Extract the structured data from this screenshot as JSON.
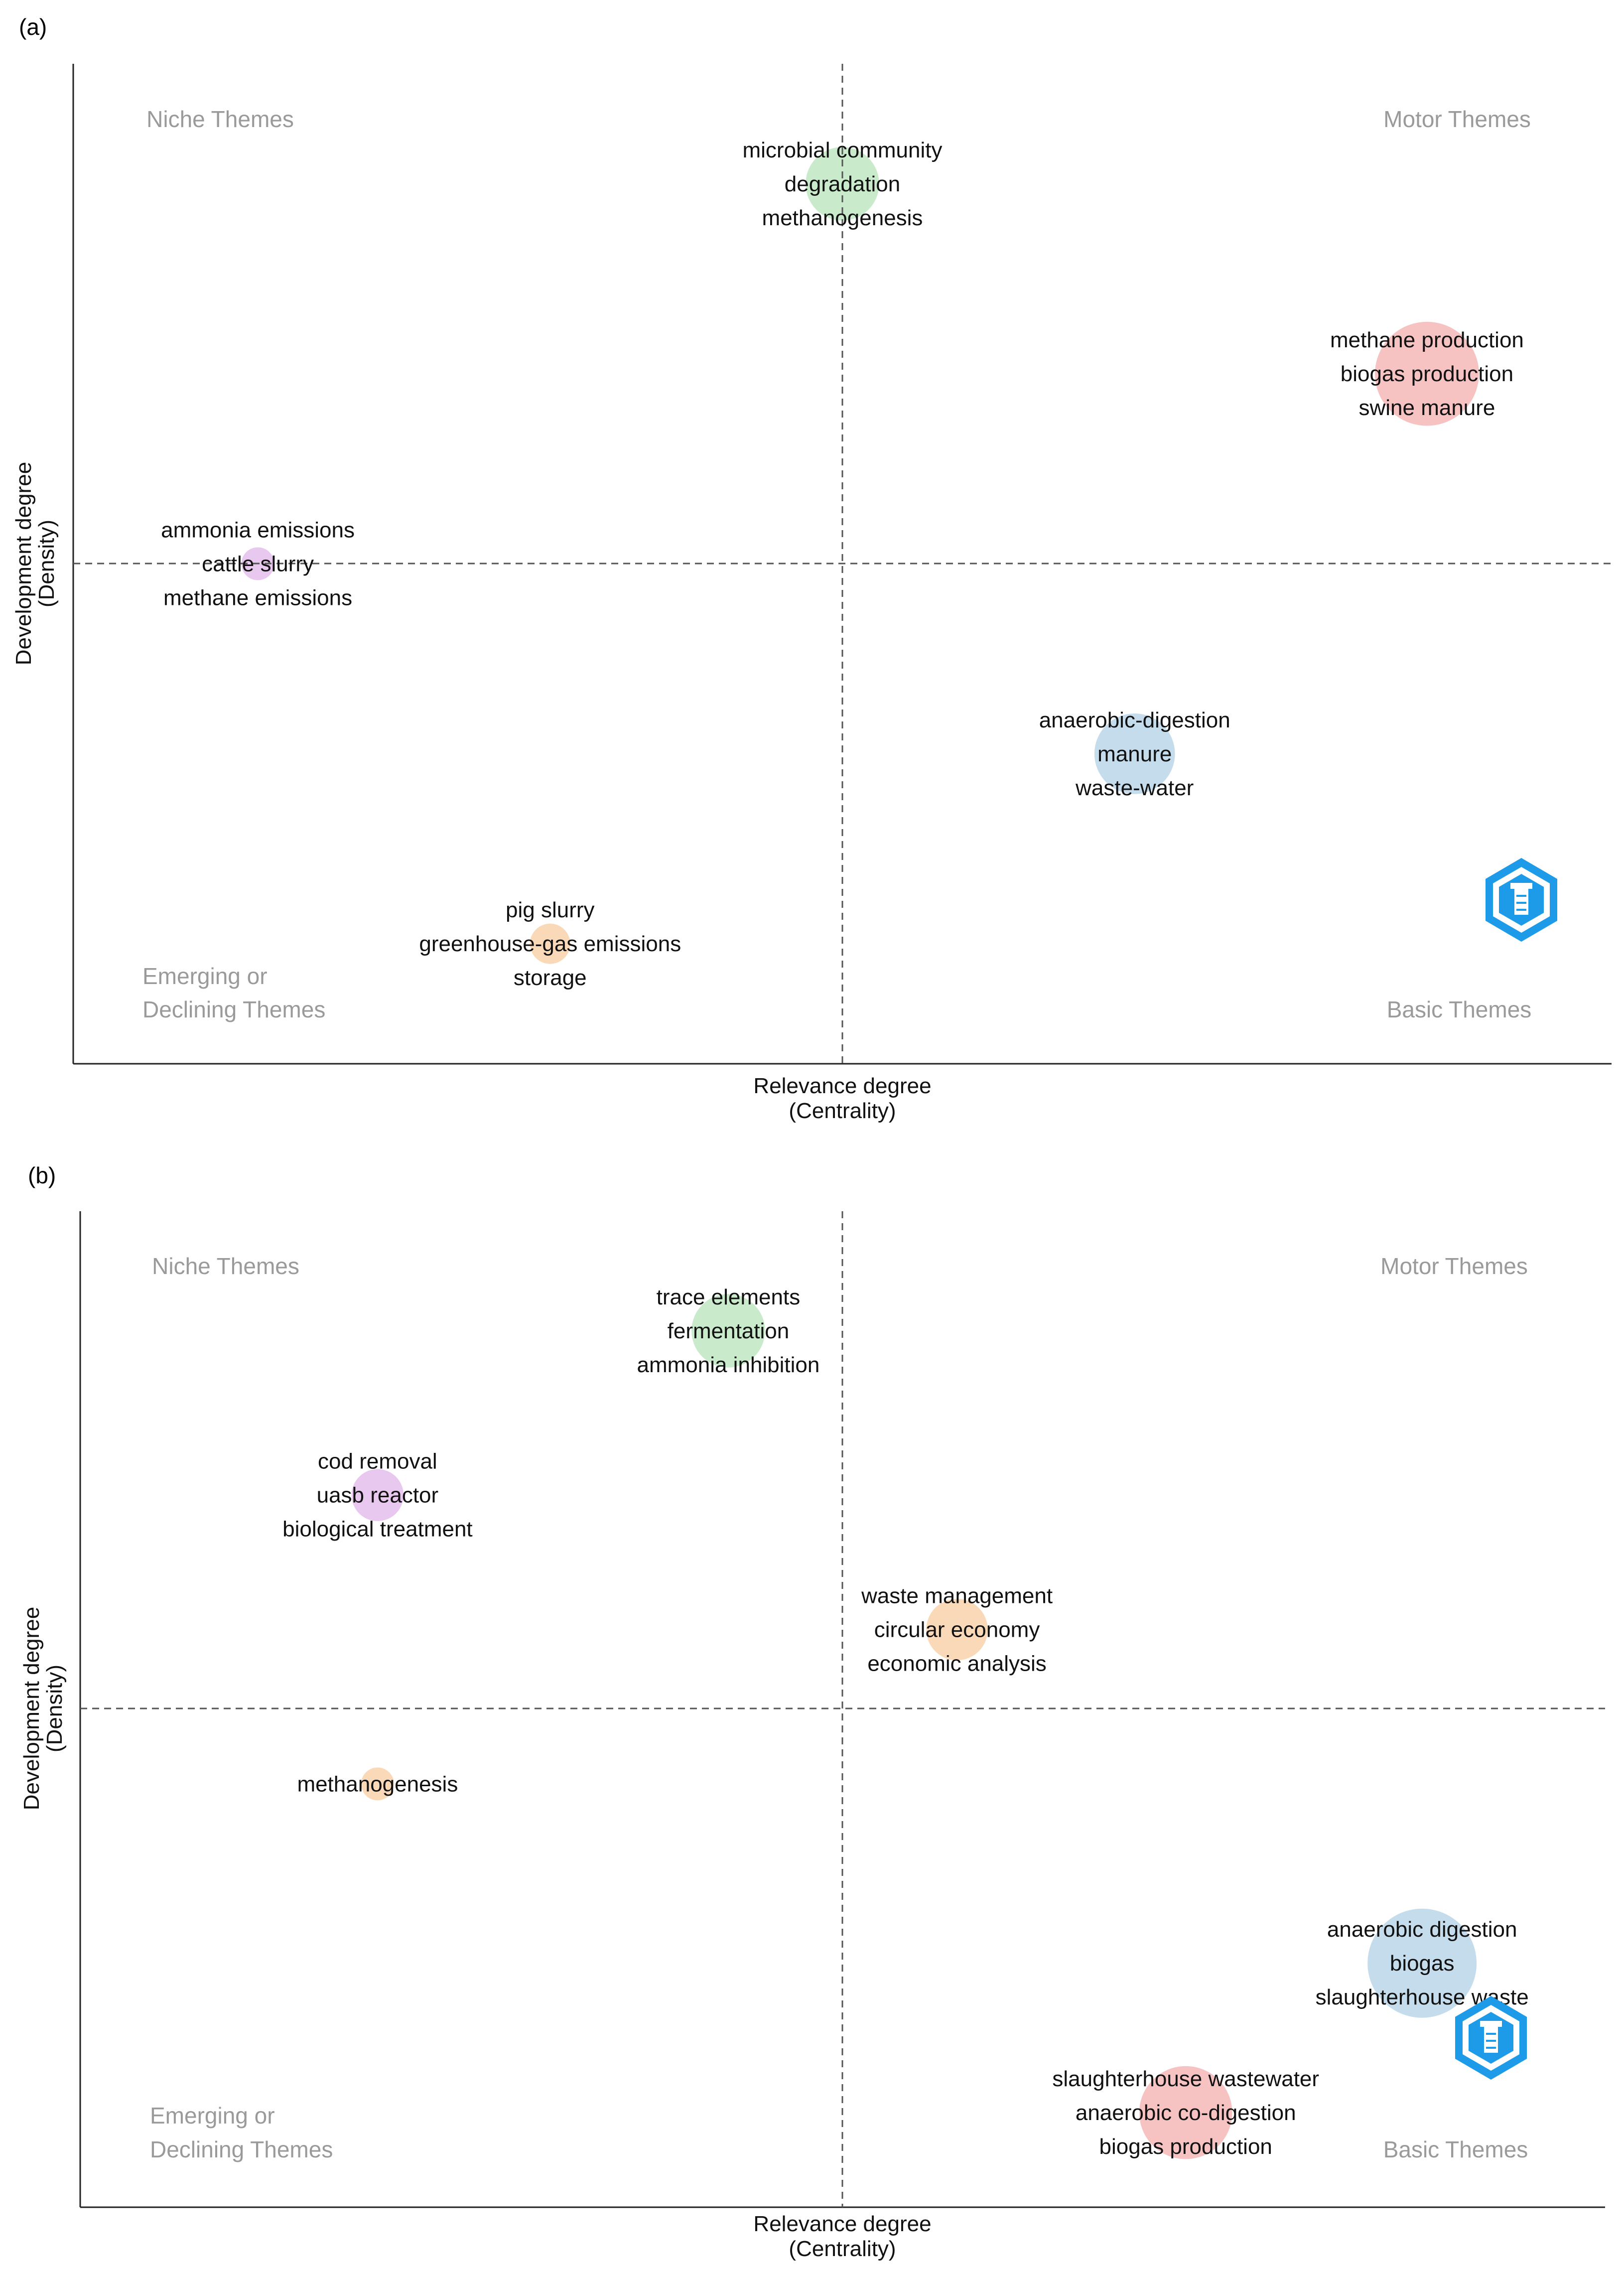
{
  "chart_data": [
    {
      "type": "scatter",
      "panel_label": "(a)",
      "xlabel": "Relevance degree",
      "xlabel_sub": "(Centrality)",
      "ylabel": "Development degree",
      "ylabel_sub": "(Density)",
      "quadrants": {
        "top_left": [
          "Niche Themes"
        ],
        "top_right": [
          "Motor Themes"
        ],
        "bottom_left": [
          "Emerging or",
          "Declining Themes"
        ],
        "bottom_right": [
          "Basic Themes"
        ]
      },
      "xlim": [
        0,
        100
      ],
      "ylim": [
        0,
        100
      ],
      "x_mid": 50,
      "y_mid": 50,
      "clusters": [
        {
          "keywords": [
            "microbial community",
            "degradation",
            "methanogenesis"
          ],
          "x": 50,
          "y": 88,
          "size": 5,
          "color": "#c9ebcc"
        },
        {
          "keywords": [
            "methane production",
            "biogas production",
            "swine manure"
          ],
          "x": 88,
          "y": 69,
          "size": 10,
          "color": "#f7c2c2"
        },
        {
          "keywords": [
            "ammonia emissions",
            "cattle slurry",
            "methane emissions"
          ],
          "x": 12,
          "y": 50,
          "size": 1,
          "color": "#e8c8ee"
        },
        {
          "keywords": [
            "anaerobic-digestion",
            "manure",
            "waste-water"
          ],
          "x": 69,
          "y": 31,
          "size": 6,
          "color": "#c5dcec"
        },
        {
          "keywords": [
            "pig slurry",
            "greenhouse-gas emissions",
            "storage"
          ],
          "x": 31,
          "y": 12,
          "size": 1.5,
          "color": "#fad9b8"
        }
      ]
    },
    {
      "type": "scatter",
      "panel_label": "(b)",
      "xlabel": "Relevance degree",
      "xlabel_sub": "(Centrality)",
      "ylabel": "Development degree",
      "ylabel_sub": "(Density)",
      "quadrants": {
        "top_left": [
          "Niche Themes"
        ],
        "top_right": [
          "Motor Themes"
        ],
        "bottom_left": [
          "Emerging or",
          "Declining Themes"
        ],
        "bottom_right": [
          "Basic Themes"
        ]
      },
      "xlim": [
        0,
        100
      ],
      "ylim": [
        0,
        100
      ],
      "x_mid": 50,
      "y_mid": 50,
      "clusters": [
        {
          "keywords": [
            "trace elements",
            "fermentation",
            "ammonia inhibition"
          ],
          "x": 42.5,
          "y": 88,
          "size": 5,
          "color": "#c9ebcc"
        },
        {
          "keywords": [
            "cod removal",
            "uasb reactor",
            "biological treatment"
          ],
          "x": 19.5,
          "y": 71.5,
          "size": 2.5,
          "color": "#e8c8ee"
        },
        {
          "keywords": [
            "waste management",
            "circular economy",
            "economic analysis"
          ],
          "x": 57.5,
          "y": 58,
          "size": 3.5,
          "color": "#fad9b8"
        },
        {
          "keywords": [
            "methanogenesis"
          ],
          "x": 19.5,
          "y": 42.5,
          "size": 1,
          "color": "#fad9b8"
        },
        {
          "keywords": [
            "anaerobic digestion",
            "biogas",
            "slaughterhouse waste"
          ],
          "x": 88,
          "y": 24.5,
          "size": 11,
          "color": "#c5dcec"
        },
        {
          "keywords": [
            "slaughterhouse wastewater",
            "anaerobic co-digestion",
            "biogas production"
          ],
          "x": 72.5,
          "y": 9.5,
          "size": 8,
          "color": "#f7c2c2"
        }
      ]
    }
  ],
  "logo": {
    "name": "bibliometrix-icon",
    "color": "#1e9be8"
  }
}
